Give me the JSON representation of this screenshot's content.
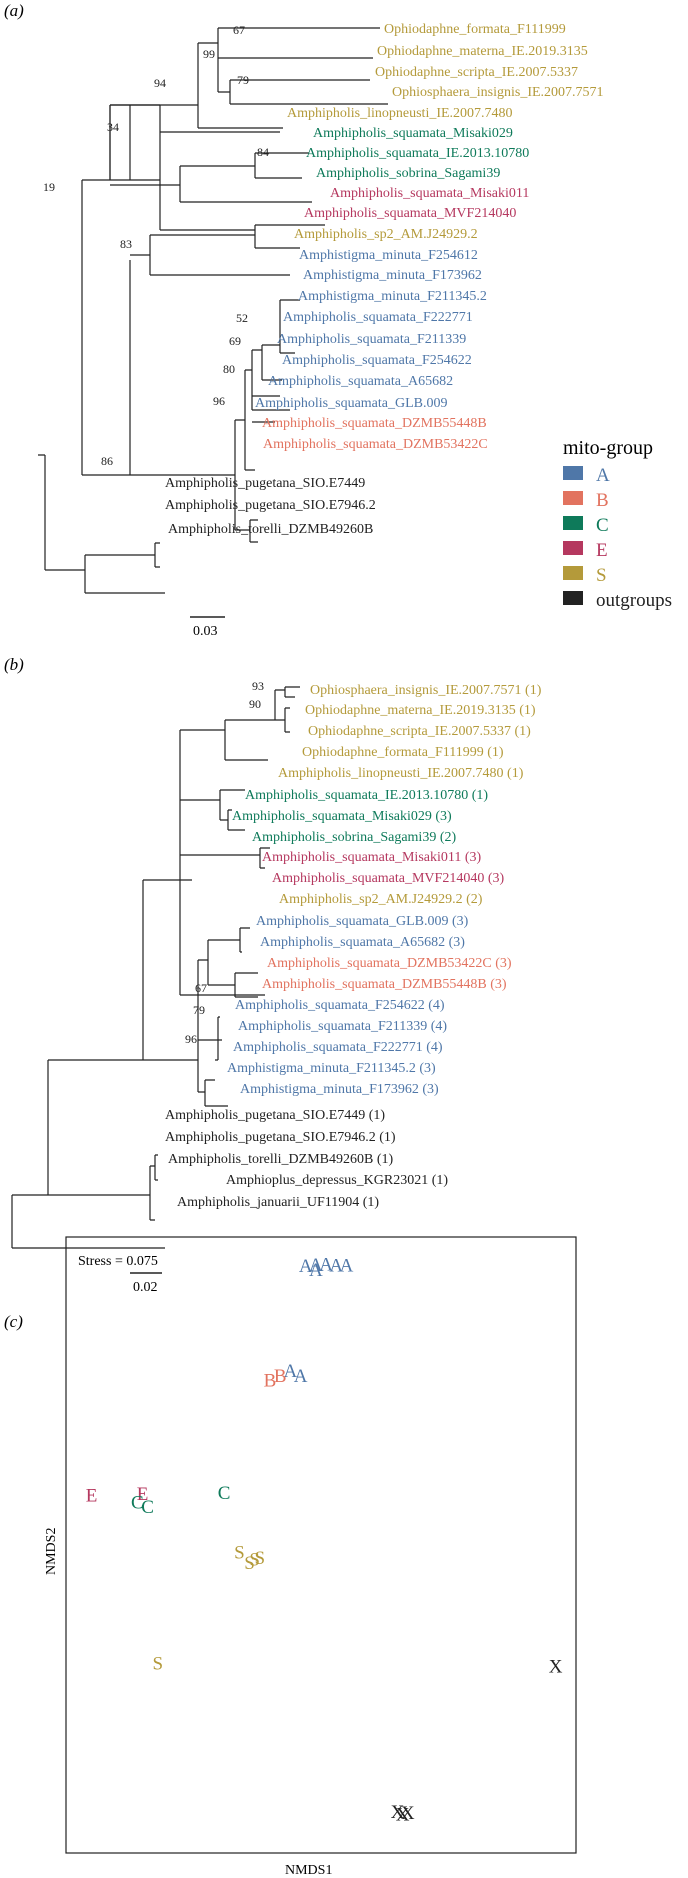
{
  "colors": {
    "A": "#4f77a8",
    "B": "#e2735f",
    "C": "#0e7a5a",
    "E": "#b5385f",
    "S": "#b49a3a",
    "X": "#222222"
  },
  "panels": {
    "a": "(a)",
    "b": "(b)",
    "c": "(c)"
  },
  "legend": {
    "title": "mito-group",
    "items": [
      {
        "key": "A",
        "label": "A"
      },
      {
        "key": "B",
        "label": "B"
      },
      {
        "key": "C",
        "label": "C"
      },
      {
        "key": "E",
        "label": "E"
      },
      {
        "key": "S",
        "label": "S"
      },
      {
        "key": "X",
        "label": "outgroups"
      }
    ]
  },
  "tree_a": {
    "scale": "0.03",
    "tips": [
      {
        "label": "Ophiodaphne_formata_F111999",
        "group": "S"
      },
      {
        "label": "Ophiodaphne_materna_IE.2019.3135",
        "group": "S"
      },
      {
        "label": "Ophiodaphne_scripta_IE.2007.5337",
        "group": "S"
      },
      {
        "label": "Ophiosphaera_insignis_IE.2007.7571",
        "group": "S"
      },
      {
        "label": "Amphipholis_linopneusti_IE.2007.7480",
        "group": "S"
      },
      {
        "label": "Amphipholis_squamata_Misaki029",
        "group": "C"
      },
      {
        "label": "Amphipholis_squamata_IE.2013.10780",
        "group": "C"
      },
      {
        "label": "Amphipholis_sobrina_Sagami39",
        "group": "C"
      },
      {
        "label": "Amphipholis_squamata_Misaki011",
        "group": "E"
      },
      {
        "label": "Amphipholis_squamata_MVF214040",
        "group": "E"
      },
      {
        "label": "Amphipholis_sp2_AM.J24929.2",
        "group": "S"
      },
      {
        "label": "Amphistigma_minuta_F254612",
        "group": "A"
      },
      {
        "label": "Amphistigma_minuta_F173962",
        "group": "A"
      },
      {
        "label": "Amphistigma_minuta_F211345.2",
        "group": "A"
      },
      {
        "label": "Amphipholis_squamata_F222771",
        "group": "A"
      },
      {
        "label": "Amphipholis_squamata_F211339",
        "group": "A"
      },
      {
        "label": "Amphipholis_squamata_F254622",
        "group": "A"
      },
      {
        "label": "Amphipholis_squamata_A65682",
        "group": "A"
      },
      {
        "label": "Amphipholis_squamata_GLB.009",
        "group": "A"
      },
      {
        "label": "Amphipholis_squamata_DZMB55448B",
        "group": "B"
      },
      {
        "label": "Amphipholis_squamata_DZMB53422C",
        "group": "B"
      },
      {
        "label": "Amphipholis_pugetana_SIO.E7449",
        "group": "X"
      },
      {
        "label": "Amphipholis_pugetana_SIO.E7946.2",
        "group": "X"
      },
      {
        "label": "Amphipholis_torelli_DZMB49260B",
        "group": "X"
      }
    ],
    "support": [
      "67",
      "99",
      "79",
      "94",
      "34",
      "84",
      "19",
      "83",
      "52",
      "69",
      "80",
      "96",
      "86"
    ]
  },
  "tree_b": {
    "scale": "0.02",
    "tips": [
      {
        "label": "Ophiosphaera_insignis_IE.2007.7571 (1)",
        "group": "S"
      },
      {
        "label": "Ophiodaphne_materna_IE.2019.3135 (1)",
        "group": "S"
      },
      {
        "label": "Ophiodaphne_scripta_IE.2007.5337 (1)",
        "group": "S"
      },
      {
        "label": "Ophiodaphne_formata_F111999 (1)",
        "group": "S"
      },
      {
        "label": "Amphipholis_linopneusti_IE.2007.7480 (1)",
        "group": "S"
      },
      {
        "label": "Amphipholis_squamata_IE.2013.10780 (1)",
        "group": "C"
      },
      {
        "label": "Amphipholis_squamata_Misaki029 (3)",
        "group": "C"
      },
      {
        "label": "Amphipholis_sobrina_Sagami39 (2)",
        "group": "C"
      },
      {
        "label": "Amphipholis_squamata_Misaki011 (3)",
        "group": "E"
      },
      {
        "label": "Amphipholis_squamata_MVF214040 (3)",
        "group": "E"
      },
      {
        "label": "Amphipholis_sp2_AM.J24929.2 (2)",
        "group": "S"
      },
      {
        "label": "Amphipholis_squamata_GLB.009 (3)",
        "group": "A"
      },
      {
        "label": "Amphipholis_squamata_A65682 (3)",
        "group": "A"
      },
      {
        "label": "Amphipholis_squamata_DZMB53422C (3)",
        "group": "B"
      },
      {
        "label": "Amphipholis_squamata_DZMB55448B (3)",
        "group": "B"
      },
      {
        "label": "Amphipholis_squamata_F254622 (4)",
        "group": "A"
      },
      {
        "label": "Amphipholis_squamata_F211339 (4)",
        "group": "A"
      },
      {
        "label": "Amphipholis_squamata_F222771 (4)",
        "group": "A"
      },
      {
        "label": "Amphistigma_minuta_F211345.2 (3)",
        "group": "A"
      },
      {
        "label": "Amphistigma_minuta_F173962 (3)",
        "group": "A"
      },
      {
        "label": "Amphipholis_pugetana_SIO.E7449 (1)",
        "group": "X"
      },
      {
        "label": "Amphipholis_pugetana_SIO.E7946.2 (1)",
        "group": "X"
      },
      {
        "label": "Amphipholis_torelli_DZMB49260B (1)",
        "group": "X"
      },
      {
        "label": "Amphioplus_depressus_KGR23021 (1)",
        "group": "X"
      },
      {
        "label": "Amphipholis_januarii_UF11904 (1)",
        "group": "X"
      }
    ],
    "support": [
      "93",
      "90",
      "67",
      "79",
      "96"
    ]
  },
  "nmds": {
    "stress_label": "Stress = 0.075",
    "xlabel": "NMDS1",
    "ylabel": "NMDS2",
    "points": [
      {
        "g": "A",
        "x": 0.47,
        "y": 0.95
      },
      {
        "g": "A",
        "x": 0.49,
        "y": 0.952
      },
      {
        "g": "A",
        "x": 0.51,
        "y": 0.953
      },
      {
        "g": "A",
        "x": 0.53,
        "y": 0.951
      },
      {
        "g": "A",
        "x": 0.49,
        "y": 0.944
      },
      {
        "g": "A",
        "x": 0.55,
        "y": 0.951
      },
      {
        "g": "A",
        "x": 0.44,
        "y": 0.78
      },
      {
        "g": "A",
        "x": 0.46,
        "y": 0.772
      },
      {
        "g": "B",
        "x": 0.4,
        "y": 0.764
      },
      {
        "g": "B",
        "x": 0.42,
        "y": 0.772
      },
      {
        "g": "E",
        "x": 0.05,
        "y": 0.578
      },
      {
        "g": "E",
        "x": 0.15,
        "y": 0.58
      },
      {
        "g": "C",
        "x": 0.14,
        "y": 0.566
      },
      {
        "g": "C",
        "x": 0.16,
        "y": 0.559
      },
      {
        "g": "C",
        "x": 0.31,
        "y": 0.582
      },
      {
        "g": "S",
        "x": 0.34,
        "y": 0.485
      },
      {
        "g": "S",
        "x": 0.36,
        "y": 0.468
      },
      {
        "g": "S",
        "x": 0.37,
        "y": 0.474
      },
      {
        "g": "S",
        "x": 0.38,
        "y": 0.476
      },
      {
        "g": "S",
        "x": 0.18,
        "y": 0.305
      },
      {
        "g": "X",
        "x": 0.96,
        "y": 0.3
      },
      {
        "g": "X",
        "x": 0.65,
        "y": 0.064
      },
      {
        "g": "X",
        "x": 0.66,
        "y": 0.06
      },
      {
        "g": "X",
        "x": 0.67,
        "y": 0.062
      }
    ]
  }
}
